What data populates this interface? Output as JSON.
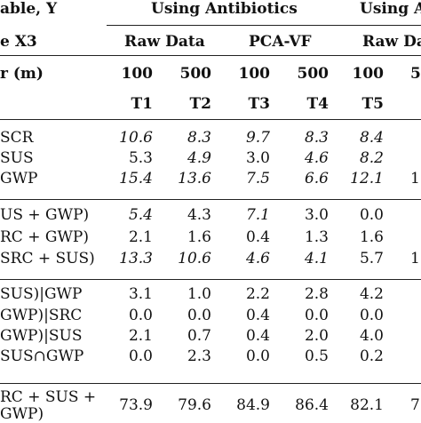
{
  "header": {
    "row1": {
      "label": "able, Y",
      "group1": "Using Antibiotics",
      "group2": "Using A"
    },
    "row2": {
      "label": "e X3",
      "col1": "Raw Data",
      "col2": "PCA-VF",
      "col3": "Raw Da"
    },
    "row3": {
      "label": "r (m)",
      "values": [
        "100",
        "500",
        "100",
        "500",
        "100",
        "5"
      ]
    },
    "row4": {
      "values": [
        "T1",
        "T2",
        "T3",
        "T4",
        "T5"
      ]
    }
  },
  "rows": [
    {
      "label": "SCR",
      "values": [
        "10.6",
        "8.3",
        "9.7",
        "8.3",
        "8.4"
      ],
      "italic": [
        true,
        true,
        true,
        true,
        true
      ]
    },
    {
      "label": "SUS",
      "values": [
        "5.3",
        "4.9",
        "3.0",
        "4.6",
        "8.2"
      ],
      "italic": [
        false,
        true,
        false,
        true,
        true
      ]
    },
    {
      "label": "GWP",
      "values": [
        "15.4",
        "13.6",
        "7.5",
        "6.6",
        "12.1",
        "1"
      ],
      "italic": [
        true,
        true,
        true,
        true,
        true,
        false
      ]
    },
    {
      "label": "US + GWP)",
      "values": [
        "5.4",
        "4.3",
        "7.1",
        "3.0",
        "0.0"
      ],
      "italic": [
        true,
        false,
        true,
        false,
        false
      ]
    },
    {
      "label": "RC + GWP)",
      "values": [
        "2.1",
        "1.6",
        "0.4",
        "1.3",
        "1.6"
      ],
      "italic": [
        false,
        false,
        false,
        false,
        false
      ]
    },
    {
      "label": "SRC + SUS)",
      "values": [
        "13.3",
        "10.6",
        "4.6",
        "4.1",
        "5.7",
        "1"
      ],
      "italic": [
        true,
        true,
        true,
        true,
        false,
        false
      ]
    },
    {
      "label": "SUS)|GWP",
      "values": [
        "3.1",
        "1.0",
        "2.2",
        "2.8",
        "4.2"
      ],
      "italic": [
        false,
        false,
        false,
        false,
        false
      ]
    },
    {
      "label": "GWP)|SRC",
      "values": [
        "0.0",
        "0.0",
        "0.4",
        "0.0",
        "0.0"
      ],
      "italic": [
        false,
        false,
        false,
        false,
        false
      ]
    },
    {
      "label": "GWP)|SUS",
      "values": [
        "2.1",
        "0.7",
        "0.4",
        "2.0",
        "4.0"
      ],
      "italic": [
        false,
        false,
        false,
        false,
        false
      ]
    },
    {
      "label": "SUS∩GWP",
      "values": [
        "0.0",
        "2.3",
        "0.0",
        "0.5",
        "0.2"
      ],
      "italic": [
        false,
        false,
        false,
        false,
        false
      ]
    }
  ],
  "last_row": {
    "label_line1": "RC + SUS +",
    "label_line2": "GWP)",
    "values": [
      "73.9",
      "79.6",
      "84.9",
      "86.4",
      "82.1",
      "7"
    ]
  }
}
